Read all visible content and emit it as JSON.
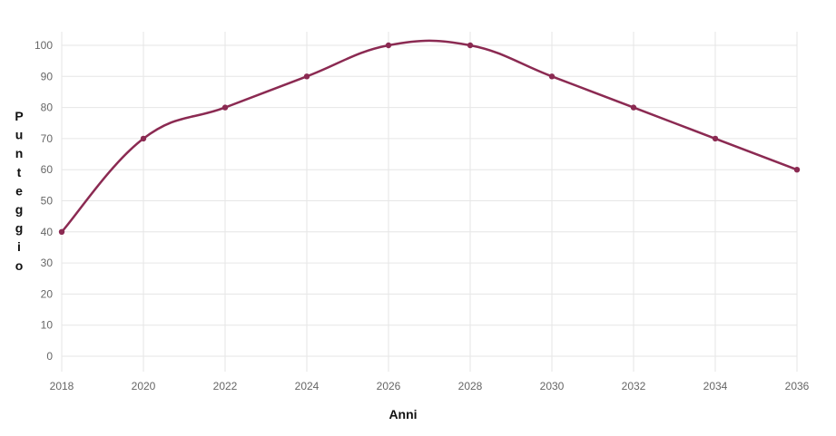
{
  "chart_data": {
    "type": "line",
    "x": [
      2018,
      2020,
      2022,
      2024,
      2026,
      2028,
      2030,
      2032,
      2034,
      2036
    ],
    "series": [
      {
        "values": [
          40,
          70,
          80,
          90,
          100,
          100,
          90,
          80,
          70,
          60
        ]
      }
    ],
    "xlabel": "Anni",
    "ylabel": "Punteggio",
    "xlim": [
      2018,
      2036
    ],
    "ylim": [
      0,
      100
    ],
    "yticks": [
      0,
      10,
      20,
      30,
      40,
      50,
      60,
      70,
      80,
      90,
      100
    ],
    "xticks": [
      2018,
      2020,
      2022,
      2024,
      2026,
      2028,
      2030,
      2032,
      2034,
      2036
    ],
    "grid": true,
    "smooth": true,
    "line_color": "#8b2a52",
    "grid_color": "#e6e6e6"
  }
}
